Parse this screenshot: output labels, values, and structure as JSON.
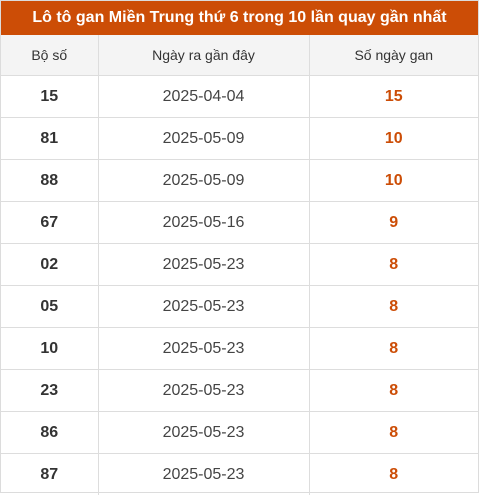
{
  "title": "Lô tô gan Miền Trung thứ 6 trong 10 lần quay gần nhất",
  "colors": {
    "accent": "#cc4d06",
    "header_bg": "#f4f4f4"
  },
  "columns": [
    "Bộ số",
    "Ngày ra gần đây",
    "Số ngày gan"
  ],
  "rows": [
    {
      "number": "15",
      "date": "2025-04-04",
      "days": "15"
    },
    {
      "number": "81",
      "date": "2025-05-09",
      "days": "10"
    },
    {
      "number": "88",
      "date": "2025-05-09",
      "days": "10"
    },
    {
      "number": "67",
      "date": "2025-05-16",
      "days": "9"
    },
    {
      "number": "02",
      "date": "2025-05-23",
      "days": "8"
    },
    {
      "number": "05",
      "date": "2025-05-23",
      "days": "8"
    },
    {
      "number": "10",
      "date": "2025-05-23",
      "days": "8"
    },
    {
      "number": "23",
      "date": "2025-05-23",
      "days": "8"
    },
    {
      "number": "86",
      "date": "2025-05-23",
      "days": "8"
    },
    {
      "number": "87",
      "date": "2025-05-23",
      "days": "8"
    }
  ]
}
